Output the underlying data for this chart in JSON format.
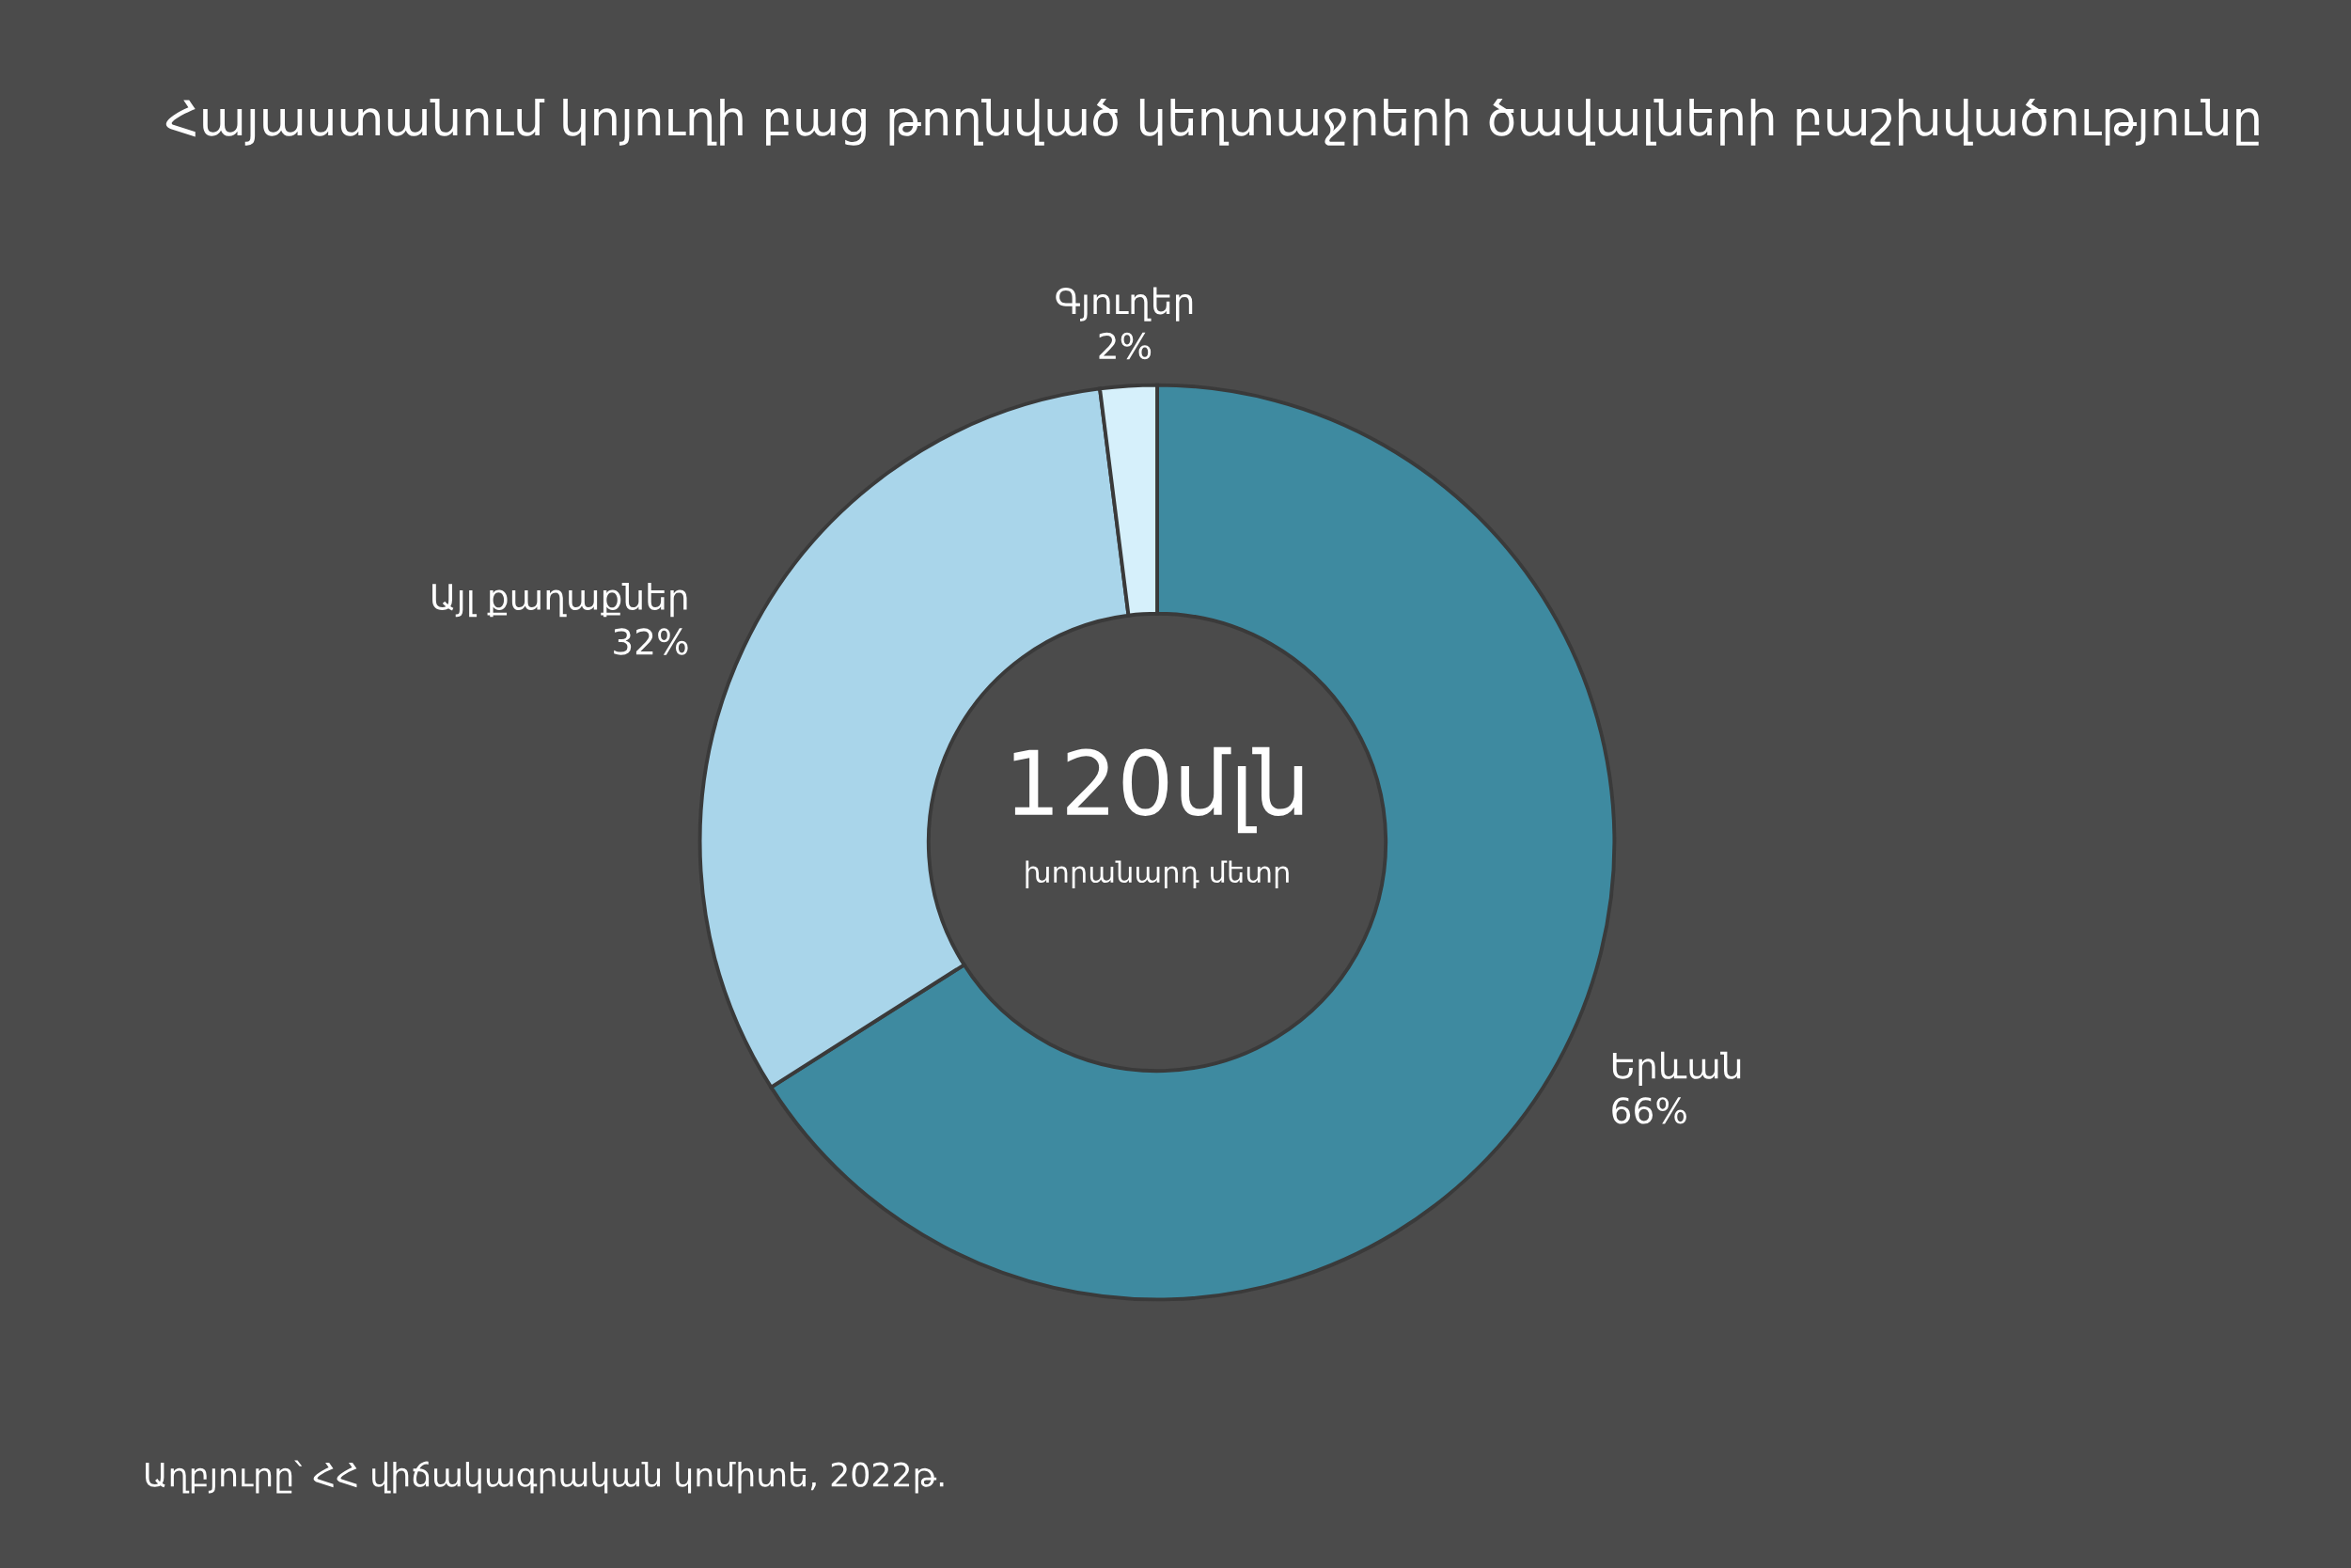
{
  "chart_data": {
    "type": "donut",
    "title": "Հայաստանում կոյուղի բաց թողնված կեղտաջրերի ծավալների բաշխվածությունը",
    "categories": [
      "Երևան",
      "Այլ քաղաքներ",
      "Գյուղեր"
    ],
    "values": [
      66,
      32,
      2
    ],
    "colors": [
      "#3e8aa0",
      "#a9d5ea",
      "#d6f0fb"
    ],
    "value_labels": [
      "66%",
      "32%",
      "2%"
    ],
    "annotations": [
      "120մլն",
      "խորանարդ մետր",
      "Աղբյուրը՝ ՀՀ վիճակագրական կոմիտե, 2022թ."
    ],
    "legend": false
  }
}
